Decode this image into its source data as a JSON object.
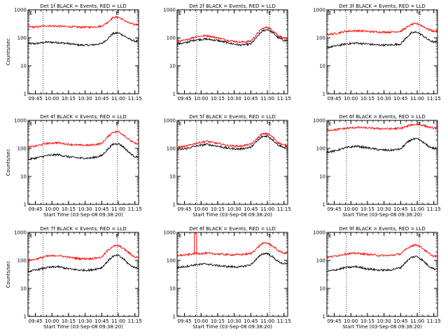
{
  "figure": {
    "background": "#ffffff",
    "colors": {
      "events": "#000000",
      "lld": "#ff0000",
      "axes": "#000000"
    },
    "panels_layout": "3x3 grid"
  },
  "chart_data": [
    {
      "type": "line",
      "title": "Det 1f BLACK = Events, RED = LLD",
      "ylabel": "Counts/sec",
      "xlabel": "",
      "yscale": "log",
      "ylim": [
        1,
        1000
      ],
      "yticks": [
        "1",
        "10",
        "100",
        "1000"
      ],
      "xticks": [
        "09:45",
        "10:00",
        "10:15",
        "10:30",
        "10:45",
        "11:00",
        "11:15"
      ],
      "xlim": [
        "09:38:20",
        "11:18:20"
      ],
      "vlines": [
        "09:52",
        "10:59"
      ],
      "marker_text": "E",
      "x": [
        "09:38",
        "09:45",
        "09:55",
        "10:05",
        "10:15",
        "10:25",
        "10:35",
        "10:45",
        "10:50",
        "10:55",
        "11:00",
        "11:05",
        "11:10",
        "11:15"
      ],
      "series": [
        {
          "name": "BLACK = Events",
          "color": "#000000",
          "values": [
            62,
            62,
            70,
            68,
            62,
            55,
            55,
            62,
            90,
            140,
            150,
            120,
            90,
            75
          ]
        },
        {
          "name": "RED = LLD",
          "color": "#ff0000",
          "values": [
            250,
            240,
            270,
            260,
            250,
            240,
            240,
            260,
            350,
            520,
            550,
            430,
            330,
            300
          ]
        }
      ]
    },
    {
      "type": "line",
      "title": "Det 2f BLACK = Events, RED = LLD",
      "ylabel": "",
      "xlabel": "",
      "yscale": "log",
      "ylim": [
        1,
        1000
      ],
      "yticks": [
        "1",
        "10",
        "100",
        "1000"
      ],
      "xticks": [
        "09:45",
        "10:00",
        "10:15",
        "10:30",
        "10:45",
        "11:00",
        "11:15"
      ],
      "xlim": [
        "09:38:20",
        "11:18:20"
      ],
      "vlines": [
        "09:56",
        "11:02"
      ],
      "marker_text": "E",
      "x": [
        "09:38",
        "09:45",
        "09:55",
        "10:05",
        "10:15",
        "10:25",
        "10:35",
        "10:45",
        "10:50",
        "10:55",
        "11:00",
        "11:05",
        "11:10",
        "11:15"
      ],
      "series": [
        {
          "name": "BLACK = Events",
          "color": "#000000",
          "values": [
            60,
            65,
            85,
            90,
            80,
            65,
            55,
            60,
            100,
            170,
            200,
            150,
            100,
            80
          ]
        },
        {
          "name": "RED = LLD",
          "color": "#ff0000",
          "values": [
            75,
            80,
            110,
            120,
            100,
            80,
            70,
            75,
            130,
            210,
            240,
            180,
            120,
            95
          ]
        }
      ]
    },
    {
      "type": "line",
      "title": "Det 3f BLACK = Events, RED = LLD",
      "ylabel": "",
      "xlabel": "",
      "yscale": "log",
      "ylim": [
        1,
        1000
      ],
      "yticks": [
        "1",
        "10",
        "100",
        "1000"
      ],
      "xticks": [
        "09:45",
        "10:00",
        "10:15",
        "10:30",
        "10:45",
        "11:00",
        "11:15"
      ],
      "xlim": [
        "09:38:20",
        "11:18:20"
      ],
      "vlines": [
        "09:56",
        "11:02"
      ],
      "marker_text": "E",
      "x": [
        "09:38",
        "09:45",
        "09:55",
        "10:05",
        "10:15",
        "10:25",
        "10:35",
        "10:45",
        "10:50",
        "10:55",
        "11:00",
        "11:05",
        "11:10",
        "11:15"
      ],
      "series": [
        {
          "name": "BLACK = Events",
          "color": "#000000",
          "values": [
            45,
            50,
            60,
            65,
            60,
            55,
            55,
            60,
            100,
            150,
            160,
            120,
            85,
            70
          ]
        },
        {
          "name": "RED = LLD",
          "color": "#ff0000",
          "values": [
            130,
            140,
            170,
            180,
            170,
            160,
            160,
            170,
            230,
            300,
            320,
            260,
            200,
            170
          ]
        }
      ]
    },
    {
      "type": "line",
      "title": "Det 4f BLACK = Events, RED = LLD",
      "ylabel": "Counts/sec",
      "xlabel": "Start Time (03-Sep-08 09:38:20)",
      "yscale": "log",
      "ylim": [
        1,
        1000
      ],
      "yticks": [
        "1",
        "10",
        "100",
        "1000"
      ],
      "xticks": [
        "09:45",
        "10:00",
        "10:15",
        "10:30",
        "10:45",
        "11:00",
        "11:15"
      ],
      "xlim": [
        "09:38:20",
        "11:18:20"
      ],
      "vlines": [
        "09:52",
        "10:59"
      ],
      "marker_text": "E",
      "x": [
        "09:38",
        "09:45",
        "09:55",
        "10:05",
        "10:15",
        "10:25",
        "10:35",
        "10:45",
        "10:50",
        "10:55",
        "11:00",
        "11:05",
        "11:10",
        "11:15"
      ],
      "series": [
        {
          "name": "BLACK = Events",
          "color": "#000000",
          "values": [
            40,
            45,
            55,
            60,
            50,
            45,
            45,
            55,
            90,
            140,
            150,
            110,
            70,
            50
          ]
        },
        {
          "name": "RED = LLD",
          "color": "#ff0000",
          "values": [
            110,
            120,
            150,
            160,
            140,
            130,
            130,
            150,
            250,
            380,
            400,
            300,
            200,
            150
          ]
        }
      ]
    },
    {
      "type": "line",
      "title": "Det 5f BLACK = Events, RED = LLD",
      "ylabel": "",
      "xlabel": "Start Time (03-Sep-08 09:38:20)",
      "yscale": "log",
      "ylim": [
        1,
        1000
      ],
      "yticks": [
        "1",
        "10",
        "100",
        "1000"
      ],
      "xticks": [
        "09:45",
        "10:00",
        "10:15",
        "10:30",
        "10:45",
        "11:00",
        "11:15"
      ],
      "xlim": [
        "09:38:20",
        "11:18:20"
      ],
      "vlines": [
        "09:56",
        "11:02"
      ],
      "marker_text": "E",
      "x": [
        "09:38",
        "09:45",
        "09:55",
        "10:05",
        "10:15",
        "10:25",
        "10:35",
        "10:45",
        "10:50",
        "10:55",
        "11:00",
        "11:05",
        "11:10",
        "11:15"
      ],
      "series": [
        {
          "name": "BLACK = Events",
          "color": "#000000",
          "values": [
            90,
            95,
            120,
            140,
            120,
            100,
            95,
            110,
            170,
            260,
            280,
            200,
            130,
            110
          ]
        },
        {
          "name": "RED = LLD",
          "color": "#ff0000",
          "values": [
            110,
            115,
            150,
            180,
            150,
            125,
            120,
            140,
            210,
            320,
            340,
            250,
            160,
            130
          ]
        }
      ]
    },
    {
      "type": "line",
      "title": "Det 6f BLACK = Events, RED = LLD",
      "ylabel": "",
      "xlabel": "Start Time (03-Sep-08 09:38:20)",
      "yscale": "log",
      "ylim": [
        1,
        1000
      ],
      "yticks": [
        "1",
        "10",
        "100",
        "1000"
      ],
      "xticks": [
        "09:45",
        "10:00",
        "10:15",
        "10:30",
        "10:45",
        "11:00",
        "11:15"
      ],
      "xlim": [
        "09:38:20",
        "11:18:20"
      ],
      "vlines": [
        "09:56",
        "11:02"
      ],
      "marker_text": "E",
      "x": [
        "09:38",
        "09:45",
        "09:55",
        "10:05",
        "10:15",
        "10:25",
        "10:35",
        "10:45",
        "10:50",
        "10:55",
        "11:00",
        "11:05",
        "11:10",
        "11:15"
      ],
      "series": [
        {
          "name": "BLACK = Events",
          "color": "#000000",
          "values": [
            75,
            80,
            105,
            120,
            105,
            90,
            85,
            95,
            150,
            210,
            220,
            170,
            120,
            100
          ]
        },
        {
          "name": "RED = LLD",
          "color": "#ff0000",
          "values": [
            450,
            460,
            520,
            560,
            540,
            510,
            500,
            520,
            600,
            700,
            720,
            680,
            580,
            530
          ]
        }
      ]
    },
    {
      "type": "line",
      "title": "Det 7f BLACK = Events, RED = LLD",
      "ylabel": "Counts/sec",
      "xlabel": "Start Time (03-Sep-08 09:38:20)",
      "yscale": "log",
      "ylim": [
        1,
        1000
      ],
      "yticks": [
        "1",
        "10",
        "100",
        "1000"
      ],
      "xticks": [
        "09:45",
        "10:00",
        "10:15",
        "10:30",
        "10:45",
        "11:00",
        "11:15"
      ],
      "xlim": [
        "09:38:20",
        "11:18:20"
      ],
      "vlines": [
        "09:52",
        "10:59"
      ],
      "marker_text": "E",
      "x": [
        "09:38",
        "09:45",
        "09:55",
        "10:05",
        "10:15",
        "10:25",
        "10:35",
        "10:45",
        "10:50",
        "10:55",
        "11:00",
        "11:05",
        "11:10",
        "11:15"
      ],
      "series": [
        {
          "name": "BLACK = Events",
          "color": "#000000",
          "values": [
            40,
            45,
            55,
            60,
            50,
            45,
            45,
            55,
            90,
            140,
            150,
            110,
            70,
            55
          ]
        },
        {
          "name": "RED = LLD",
          "color": "#ff0000",
          "values": [
            100,
            110,
            140,
            150,
            130,
            115,
            115,
            130,
            220,
            320,
            340,
            260,
            180,
            130
          ]
        }
      ]
    },
    {
      "type": "line",
      "title": "Det 8f BLACK = Events, RED = LLD",
      "ylabel": "",
      "xlabel": "Start Time (03-Sep-08 09:38:20)",
      "yscale": "log",
      "ylim": [
        1,
        1000
      ],
      "yticks": [
        "1",
        "10",
        "100",
        "1000"
      ],
      "xticks": [
        "09:45",
        "10:00",
        "10:15",
        "10:30",
        "10:45",
        "11:00",
        "11:15"
      ],
      "xlim": [
        "09:38:20",
        "11:18:20"
      ],
      "vlines": [
        "09:56",
        "11:02"
      ],
      "marker_text": "E",
      "x": [
        "09:38",
        "09:45",
        "09:55",
        "10:05",
        "10:15",
        "10:25",
        "10:35",
        "10:45",
        "10:50",
        "10:55",
        "11:00",
        "11:05",
        "11:10",
        "11:15"
      ],
      "series": [
        {
          "name": "BLACK = Events",
          "color": "#000000",
          "values": [
            55,
            60,
            70,
            75,
            65,
            60,
            58,
            70,
            110,
            170,
            180,
            130,
            90,
            75
          ]
        },
        {
          "name": "RED = LLD",
          "color": "#ff0000",
          "values": [
            150,
            155,
            175,
            180,
            170,
            160,
            160,
            175,
            260,
            400,
            420,
            320,
            220,
            180
          ]
        }
      ],
      "spikes": [
        {
          "series": "RED = LLD",
          "x": "09:54"
        },
        {
          "series": "RED = LLD",
          "x": "09:56"
        }
      ]
    },
    {
      "type": "line",
      "title": "Det 9f BLACK = Events, RED = LLD",
      "ylabel": "",
      "xlabel": "Start Time (03-Sep-08 09:38:20)",
      "yscale": "log",
      "ylim": [
        1,
        1000
      ],
      "yticks": [
        "1",
        "10",
        "100",
        "1000"
      ],
      "xticks": [
        "09:45",
        "10:00",
        "10:15",
        "10:30",
        "10:45",
        "11:00",
        "11:15"
      ],
      "xlim": [
        "09:38:20",
        "11:18:20"
      ],
      "vlines": [
        "09:56",
        "11:02"
      ],
      "marker_text": "E",
      "x": [
        "09:38",
        "09:45",
        "09:55",
        "10:05",
        "10:15",
        "10:25",
        "10:35",
        "10:45",
        "10:50",
        "10:55",
        "11:00",
        "11:05",
        "11:10",
        "11:15"
      ],
      "series": [
        {
          "name": "BLACK = Events",
          "color": "#000000",
          "values": [
            40,
            45,
            55,
            60,
            50,
            45,
            45,
            55,
            90,
            130,
            140,
            100,
            65,
            50
          ]
        },
        {
          "name": "RED = LLD",
          "color": "#ff0000",
          "values": [
            130,
            140,
            170,
            180,
            165,
            150,
            150,
            170,
            250,
            340,
            360,
            270,
            180,
            140
          ]
        }
      ]
    }
  ]
}
